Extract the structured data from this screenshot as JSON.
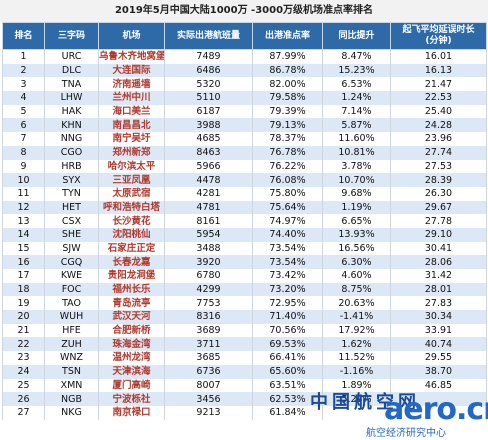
{
  "title": "2019年5月中国大陆1000万 -3000万级机场准点率排名",
  "headers": [
    "排名",
    "三字码",
    "机场",
    "实际出港航班量",
    "出港准点率",
    "同比提升",
    "起飞平均延误时长\n(分钟)"
  ],
  "rows": [
    [
      "1",
      "URC",
      "乌鲁木齐地窝堡",
      "7489",
      "87.99%",
      "8.47%",
      "16.01"
    ],
    [
      "2",
      "DLC",
      "大连国际",
      "6486",
      "86.78%",
      "15.23%",
      "16.13"
    ],
    [
      "3",
      "TNA",
      "济南遥墙",
      "5320",
      "82.00%",
      "6.53%",
      "21.47"
    ],
    [
      "4",
      "LHW",
      "兰州中川",
      "5110",
      "79.58%",
      "1.24%",
      "22.53"
    ],
    [
      "5",
      "HAK",
      "海口美兰",
      "6187",
      "79.39%",
      "7.14%",
      "25.40"
    ],
    [
      "6",
      "KHN",
      "南昌昌北",
      "3988",
      "79.13%",
      "5.87%",
      "24.28"
    ],
    [
      "7",
      "NNG",
      "南宁吴圩",
      "4685",
      "78.37%",
      "11.60%",
      "23.96"
    ],
    [
      "8",
      "CGO",
      "郑州新郑",
      "8463",
      "76.78%",
      "10.81%",
      "27.74"
    ],
    [
      "9",
      "HRB",
      "哈尔滨太平",
      "5966",
      "76.22%",
      "3.78%",
      "27.53"
    ],
    [
      "10",
      "SYX",
      "三亚凤凰",
      "4478",
      "76.08%",
      "10.70%",
      "28.39"
    ],
    [
      "11",
      "TYN",
      "太原武宿",
      "4281",
      "75.80%",
      "9.68%",
      "26.30"
    ],
    [
      "12",
      "HET",
      "呼和浩特白塔",
      "4781",
      "75.64%",
      "1.19%",
      "29.67"
    ],
    [
      "13",
      "CSX",
      "长沙黄花",
      "8161",
      "74.97%",
      "6.65%",
      "27.78"
    ],
    [
      "14",
      "SHE",
      "沈阳桃仙",
      "5954",
      "74.40%",
      "13.93%",
      "29.10"
    ],
    [
      "15",
      "SJW",
      "石家庄正定",
      "3488",
      "73.54%",
      "16.56%",
      "30.41"
    ],
    [
      "16",
      "CGQ",
      "长春龙嘉",
      "3920",
      "73.54%",
      "6.30%",
      "28.06"
    ],
    [
      "17",
      "KWE",
      "贵阳龙洞堡",
      "6780",
      "73.42%",
      "4.60%",
      "31.42"
    ],
    [
      "18",
      "FOC",
      "福州长乐",
      "4299",
      "73.20%",
      "8.75%",
      "28.01"
    ],
    [
      "19",
      "TAO",
      "青岛流亭",
      "7753",
      "72.95%",
      "20.63%",
      "27.83"
    ],
    [
      "20",
      "WUH",
      "武汉天河",
      "8316",
      "71.40%",
      "-1.41%",
      "30.34"
    ],
    [
      "21",
      "HFE",
      "合肥新桥",
      "3689",
      "70.56%",
      "17.92%",
      "33.91"
    ],
    [
      "22",
      "ZUH",
      "珠海金湾",
      "3711",
      "69.53%",
      "1.62%",
      "40.74"
    ],
    [
      "23",
      "WNZ",
      "温州龙湾",
      "3685",
      "66.41%",
      "11.52%",
      "29.55"
    ],
    [
      "24",
      "TSN",
      "天津滨海",
      "6736",
      "65.60%",
      "-1.16%",
      "38.70"
    ],
    [
      "25",
      "XMN",
      "厦门高崎",
      "8007",
      "63.51%",
      "1.89%",
      "46.85"
    ],
    [
      "26",
      "NGB",
      "宁波栎社",
      "3456",
      "62.53%",
      "5.24%",
      ""
    ],
    [
      "27",
      "NKG",
      "南京禄口",
      "9213",
      "61.84%",
      "",
      ""
    ]
  ],
  "watermark": {
    "cn": "中国航空网",
    "en": "aero.cn",
    "sub": "航空经济研究中心"
  }
}
